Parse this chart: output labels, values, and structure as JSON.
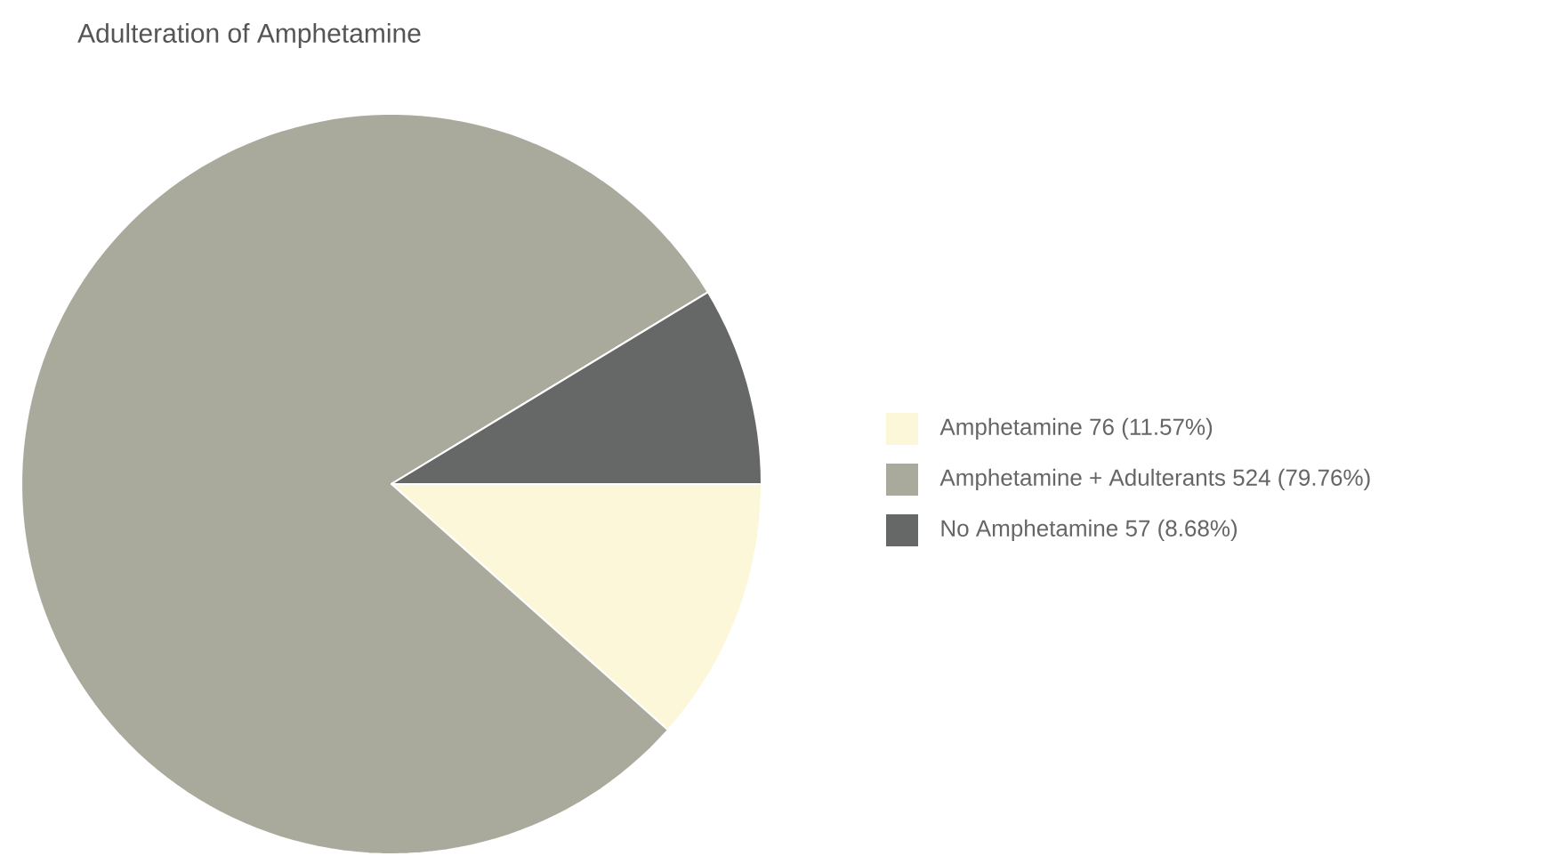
{
  "chart_data": {
    "type": "pie",
    "title": "Adulteration of Amphetamine",
    "categories": [
      "Amphetamine",
      "Amphetamine + Adulterants",
      "No Amphetamine"
    ],
    "values": [
      76,
      524,
      57
    ],
    "value_labels": [
      "76 (11.57%)",
      "524 (79.76%)",
      "57 (8.68%)"
    ],
    "colors": [
      "#fcf7d9",
      "#a9a99c",
      "#656866"
    ],
    "legend": "right"
  }
}
